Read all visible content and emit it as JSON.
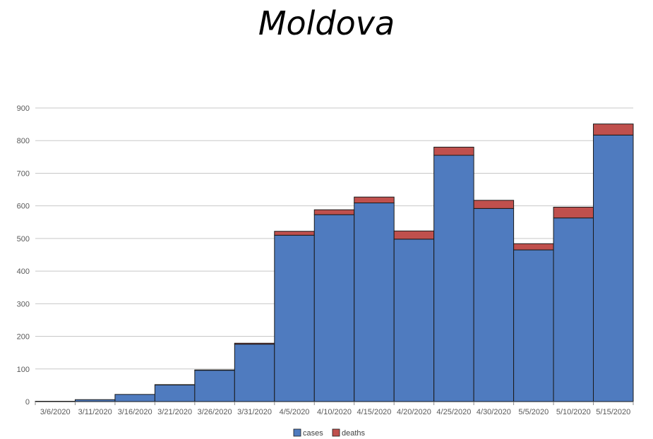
{
  "chart_data": {
    "type": "bar",
    "stacked": true,
    "title": "Moldova",
    "categories": [
      "3/6/2020",
      "3/11/2020",
      "3/16/2020",
      "3/21/2020",
      "3/26/2020",
      "3/31/2020",
      "4/5/2020",
      "4/10/2020",
      "4/15/2020",
      "4/20/2020",
      "4/25/2020",
      "4/30/2020",
      "5/5/2020",
      "5/10/2020",
      "5/15/2020"
    ],
    "series": [
      {
        "name": "cases",
        "color": "#4f7bbf",
        "values": [
          1,
          6,
          22,
          51,
          96,
          176,
          510,
          573,
          609,
          498,
          755,
          592,
          465,
          563,
          817
        ]
      },
      {
        "name": "deaths",
        "color": "#c0504d",
        "values": [
          0,
          0,
          0,
          1,
          1,
          3,
          12,
          15,
          18,
          25,
          25,
          25,
          19,
          33,
          34
        ]
      }
    ],
    "yticks": [
      0,
      100,
      200,
      300,
      400,
      500,
      600,
      700,
      800,
      900
    ],
    "ylim": [
      0,
      900
    ],
    "grid": true,
    "legend_position": "bottom"
  }
}
